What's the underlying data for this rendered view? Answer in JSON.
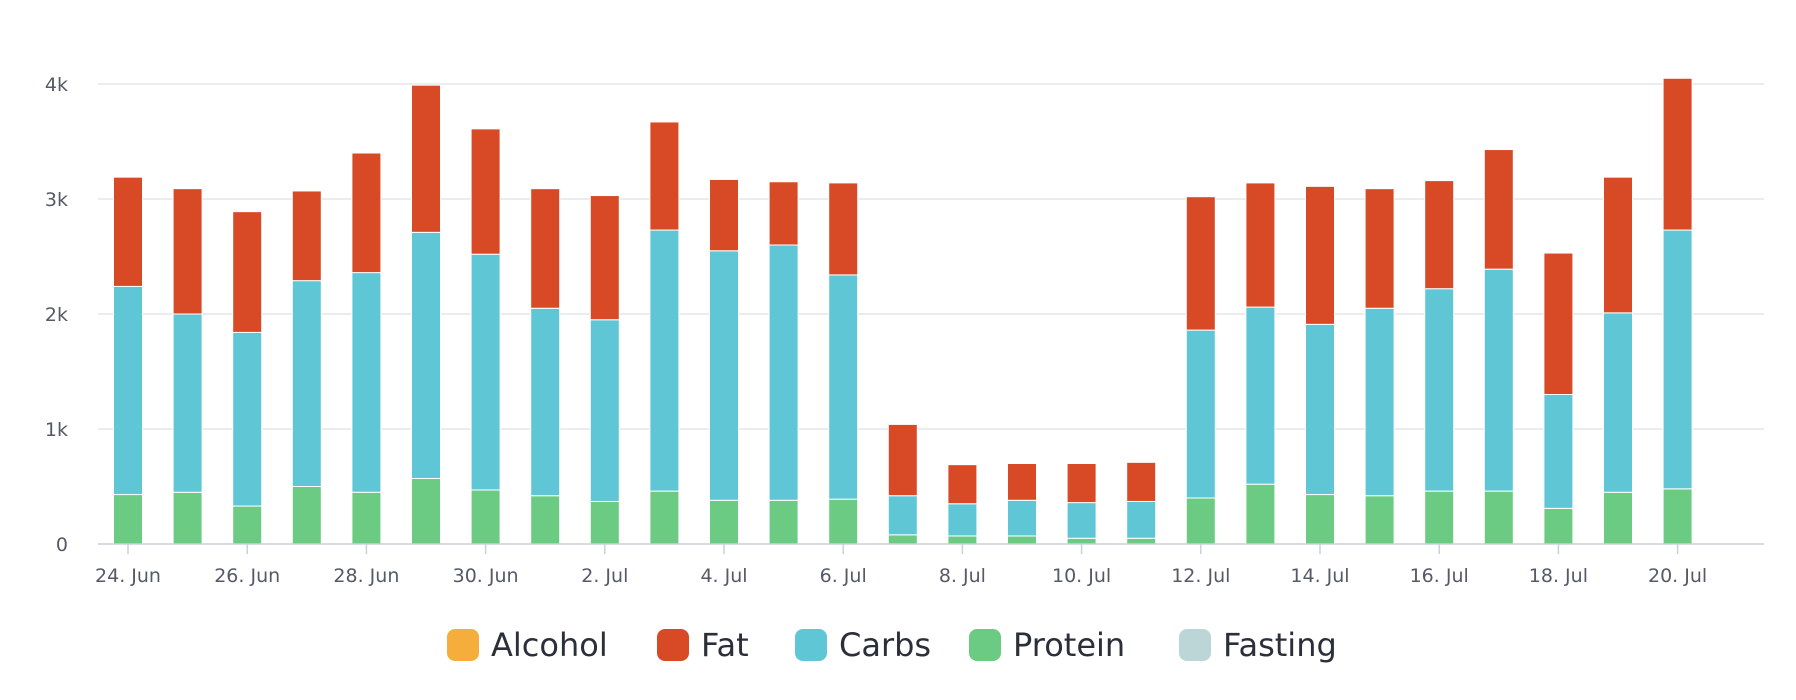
{
  "chart_data": {
    "type": "bar",
    "stacked": true,
    "title": "",
    "xlabel": "",
    "ylabel": "",
    "ylim": [
      0,
      4000
    ],
    "y_ticks": [
      {
        "value": 0,
        "label": "0"
      },
      {
        "value": 1000,
        "label": "1k"
      },
      {
        "value": 2000,
        "label": "2k"
      },
      {
        "value": 3000,
        "label": "3k"
      },
      {
        "value": 4000,
        "label": "4k"
      }
    ],
    "x_tick_labels": [
      {
        "category": "24. Jun",
        "label": "24. Jun"
      },
      {
        "category": "26. Jun",
        "label": "26. Jun"
      },
      {
        "category": "28. Jun",
        "label": "28. Jun"
      },
      {
        "category": "30. Jun",
        "label": "30. Jun"
      },
      {
        "category": "2. Jul",
        "label": "2. Jul"
      },
      {
        "category": "4. Jul",
        "label": "4. Jul"
      },
      {
        "category": "6. Jul",
        "label": "6. Jul"
      },
      {
        "category": "8. Jul",
        "label": "8. Jul"
      },
      {
        "category": "10. Jul",
        "label": "10. Jul"
      },
      {
        "category": "12. Jul",
        "label": "12. Jul"
      },
      {
        "category": "14. Jul",
        "label": "14. Jul"
      },
      {
        "category": "16. Jul",
        "label": "16. Jul"
      },
      {
        "category": "18. Jul",
        "label": "18. Jul"
      },
      {
        "category": "20. Jul",
        "label": "20. Jul"
      }
    ],
    "categories": [
      "24. Jun",
      "25. Jun",
      "26. Jun",
      "27. Jun",
      "28. Jun",
      "29. Jun",
      "30. Jun",
      "1. Jul",
      "2. Jul",
      "3. Jul",
      "4. Jul",
      "5. Jul",
      "6. Jul",
      "7. Jul",
      "8. Jul",
      "9. Jul",
      "10. Jul",
      "11. Jul",
      "12. Jul",
      "13. Jul",
      "14. Jul",
      "15. Jul",
      "16. Jul",
      "17. Jul",
      "18. Jul",
      "19. Jul",
      "20. Jul"
    ],
    "series": [
      {
        "name": "Alcohol",
        "color": "#f5ad3b",
        "values": [
          0,
          0,
          0,
          0,
          0,
          0,
          0,
          0,
          0,
          0,
          0,
          0,
          0,
          0,
          0,
          0,
          0,
          0,
          0,
          0,
          0,
          0,
          0,
          0,
          0,
          0,
          0
        ]
      },
      {
        "name": "Fat",
        "color": "#d84a25",
        "values": [
          950,
          1090,
          1050,
          780,
          1040,
          1280,
          1090,
          1040,
          1080,
          940,
          620,
          550,
          800,
          620,
          340,
          320,
          340,
          340,
          1160,
          1080,
          1200,
          1040,
          940,
          1040,
          1230,
          1180,
          1320
        ]
      },
      {
        "name": "Carbs",
        "color": "#5fc6d5",
        "values": [
          1810,
          1550,
          1510,
          1790,
          1910,
          2140,
          2050,
          1630,
          1580,
          2270,
          2170,
          2220,
          1950,
          340,
          280,
          310,
          310,
          320,
          1460,
          1540,
          1480,
          1630,
          1760,
          1930,
          990,
          1560,
          2250
        ]
      },
      {
        "name": "Protein",
        "color": "#6ccb82",
        "values": [
          430,
          450,
          330,
          500,
          450,
          570,
          470,
          420,
          370,
          460,
          380,
          380,
          390,
          80,
          70,
          70,
          50,
          50,
          400,
          520,
          430,
          420,
          460,
          460,
          310,
          450,
          480
        ]
      },
      {
        "name": "Fasting",
        "color": "#bcd5d6",
        "values": [
          0,
          0,
          0,
          0,
          0,
          0,
          0,
          0,
          0,
          0,
          0,
          0,
          0,
          0,
          0,
          0,
          0,
          0,
          0,
          0,
          0,
          0,
          0,
          0,
          0,
          0,
          0
        ]
      }
    ],
    "stack_order_bottom_to_top": [
      "Protein",
      "Carbs",
      "Fat"
    ],
    "legend": {
      "position": "bottom-center",
      "items": [
        {
          "label": "Alcohol",
          "color": "#f5ad3b"
        },
        {
          "label": "Fat",
          "color": "#d84a25"
        },
        {
          "label": "Carbs",
          "color": "#5fc6d5"
        },
        {
          "label": "Protein",
          "color": "#6ccb82"
        },
        {
          "label": "Fasting",
          "color": "#bcd5d6"
        }
      ]
    },
    "grid": true
  }
}
